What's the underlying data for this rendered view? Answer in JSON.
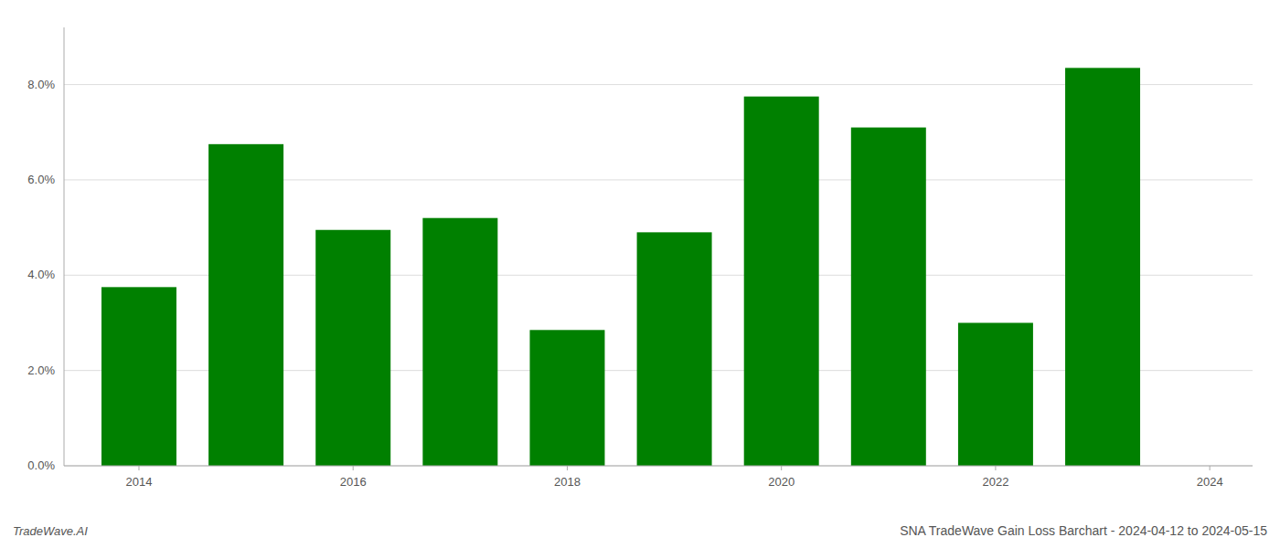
{
  "chart_data": {
    "type": "bar",
    "title": "SNA TradeWave Gain Loss Barchart - 2024-04-12 to 2024-05-15",
    "annotations": [
      "TradeWave.AI"
    ],
    "x": [
      2014,
      2015,
      2016,
      2017,
      2018,
      2019,
      2020,
      2021,
      2022,
      2023
    ],
    "values": [
      0.0375,
      0.0675,
      0.0495,
      0.052,
      0.0285,
      0.049,
      0.0775,
      0.071,
      0.03,
      0.0835
    ],
    "color": "#008000",
    "xlim": [
      2013.3,
      2024.4
    ],
    "xticks": [
      2014,
      2016,
      2018,
      2020,
      2022,
      2024
    ],
    "ylim": [
      0,
      0.092
    ],
    "yticks": [
      {
        "value": 0.0,
        "label": "0.0%"
      },
      {
        "value": 0.02,
        "label": "2.0%"
      },
      {
        "value": 0.04,
        "label": "4.0%"
      },
      {
        "value": 0.06,
        "label": "6.0%"
      },
      {
        "value": 0.08,
        "label": "8.0%"
      }
    ],
    "grid": true
  }
}
